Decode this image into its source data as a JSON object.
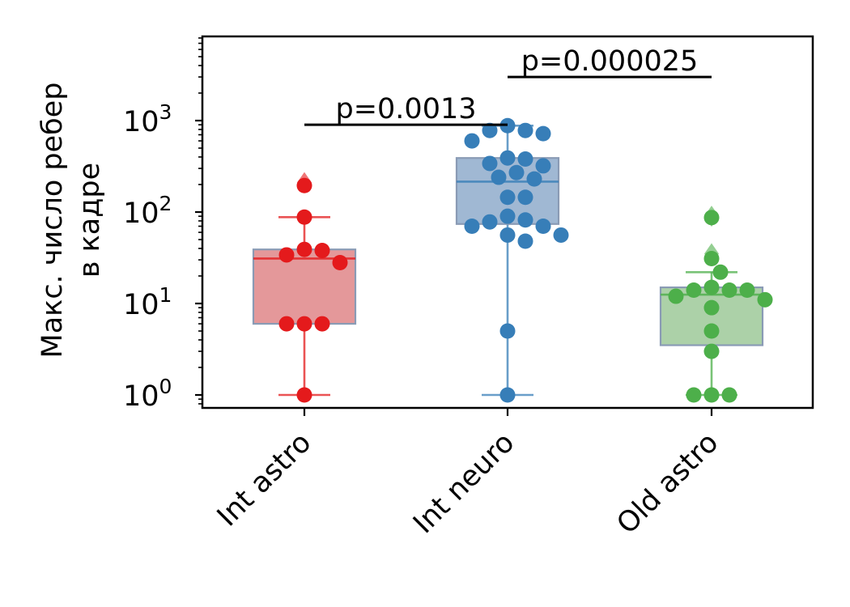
{
  "chart_data": {
    "type": "box",
    "ylabel": [
      "Макс. число ребер",
      "в кадре"
    ],
    "yscale": "log",
    "ylim": [
      0.75,
      8000
    ],
    "yticks": [
      {
        "value": 1,
        "base": "10",
        "exp": "0"
      },
      {
        "value": 10,
        "base": "10",
        "exp": "1"
      },
      {
        "value": 100,
        "base": "10",
        "exp": "2"
      },
      {
        "value": 1000,
        "base": "10",
        "exp": "3"
      }
    ],
    "categories": [
      "Int astro",
      "Int neuro",
      "Old astro"
    ],
    "groups": [
      {
        "name": "Int astro",
        "color": "#e41a1c",
        "box_fill": "#e4989a",
        "q1": 6,
        "median": 31,
        "q3": 39,
        "whisker_low": 1,
        "whisker_high": 88,
        "outliers": [
          210
        ],
        "points": [
          195,
          88,
          39,
          38,
          34,
          28,
          6,
          6,
          6,
          1
        ]
      },
      {
        "name": "Int neuro",
        "color": "#377eb8",
        "box_fill": "#a0b8d3",
        "q1": 74,
        "median": 215,
        "q3": 390,
        "whisker_low": 1,
        "whisker_high": 880,
        "outliers": [],
        "points": [
          880,
          780,
          780,
          720,
          600,
          390,
          380,
          340,
          320,
          270,
          240,
          230,
          145,
          145,
          90,
          82,
          78,
          70,
          70,
          56,
          56,
          48,
          5,
          1
        ]
      },
      {
        "name": "Old astro",
        "color": "#4daf4a",
        "box_fill": "#acd1a8",
        "q1": 3.5,
        "median": 12.5,
        "q3": 15,
        "whisker_low": 1,
        "whisker_high": 22,
        "outliers": [
          90,
          35
        ],
        "points": [
          87,
          31,
          22,
          15,
          14,
          14,
          14,
          12,
          11,
          9,
          5,
          3,
          1,
          1,
          1
        ]
      }
    ],
    "annotations": [
      {
        "text": "p=0.0013",
        "from": 0,
        "to": 1,
        "y": 900
      },
      {
        "text": "p=0.000025",
        "from": 1,
        "to": 2,
        "y": 3000
      }
    ]
  }
}
